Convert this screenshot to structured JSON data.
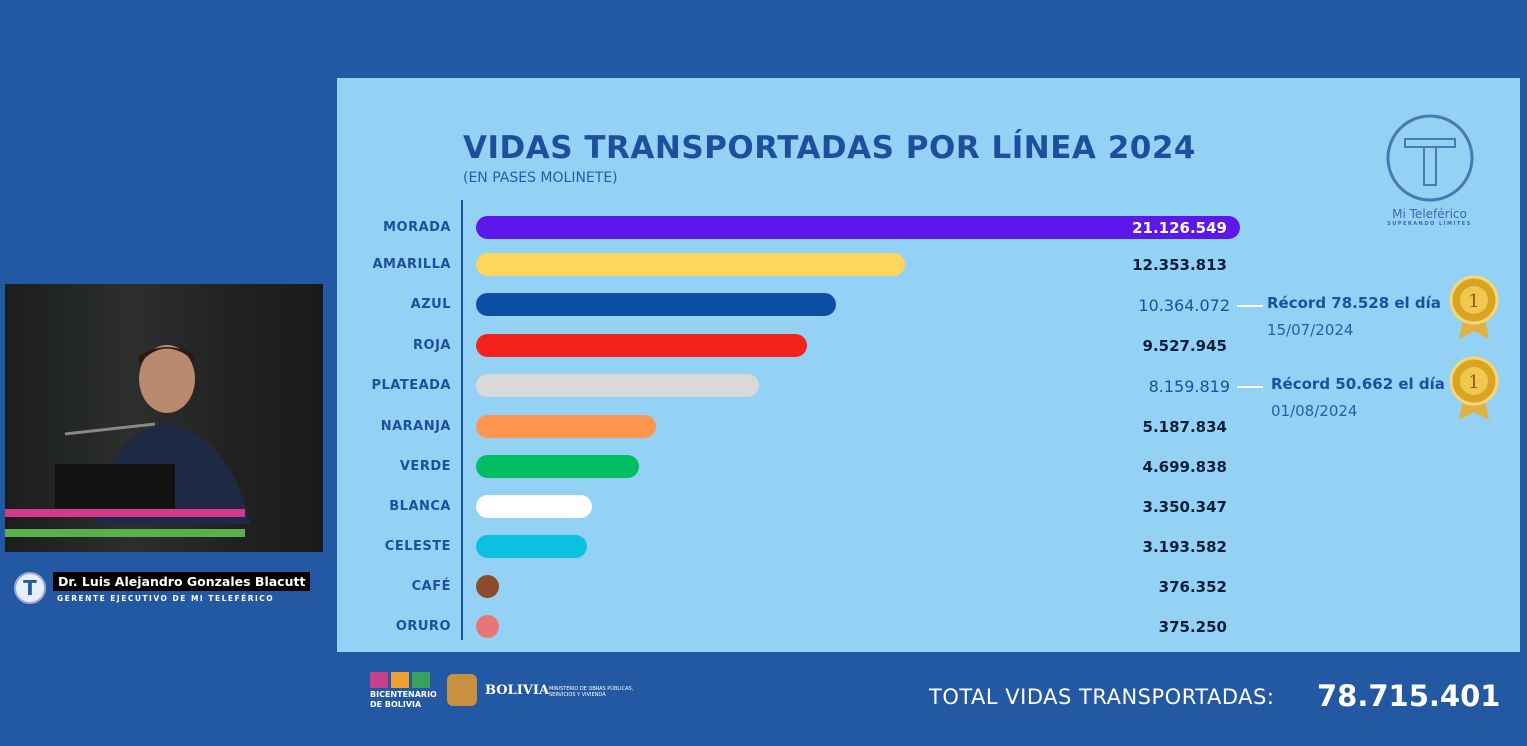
{
  "chart_data": {
    "type": "bar",
    "orientation": "horizontal",
    "title": "VIDAS TRANSPORTADAS POR LÍNEA 2024",
    "subtitle": "(EN PASES MOLINETE)",
    "categories": [
      "MORADA",
      "AMARILLA",
      "AZUL",
      "ROJA",
      "PLATEADA",
      "NARANJA",
      "VERDE",
      "BLANCA",
      "CELESTE",
      "CAFÉ",
      "ORURO"
    ],
    "values": [
      21126549,
      12353813,
      10364072,
      9527945,
      8159819,
      5187834,
      4699838,
      3350347,
      3193582,
      376352,
      375250
    ],
    "value_labels": [
      "21.126.549",
      "12.353.813",
      "10.364.072",
      "9.527.945",
      "8.159.819",
      "5.187.834",
      "4.699.838",
      "3.350.347",
      "3.193.582",
      "376.352",
      "375.250"
    ],
    "colors": [
      "#5e17eb",
      "#fdd75c",
      "#0b4ea2",
      "#f5211b",
      "#d9d9d9",
      "#ff9650",
      "#00bf63",
      "#ffffff",
      "#0cc0df",
      "#8a4c2a",
      "#e87575"
    ],
    "annotations": [
      {
        "category": "AZUL",
        "text": "Récord 78.528 el día",
        "date": "15/07/2024"
      },
      {
        "category": "PLATEADA",
        "text": "Récord 50.662 el día",
        "date": "01/08/2024"
      }
    ]
  },
  "logo": {
    "name": "Mi Teleférico",
    "tagline": "SUPERANDO LÍMITES"
  },
  "footer": {
    "total_label": "TOTAL VIDAS TRANSPORTADAS:",
    "total_value": "78.715.401",
    "logo1": "BICENTENARIO DE BOLIVIA",
    "logo2": "BOLIVIA",
    "logo3": "MINISTERIO DE OBRAS PÚBLICAS, SERVICIOS Y VIVIENDA"
  },
  "speaker": {
    "name": "Dr. Luis Alejandro Gonzales Blacutt",
    "role": "GERENTE EJECUTIVO DE MI TELEFÉRICO"
  }
}
